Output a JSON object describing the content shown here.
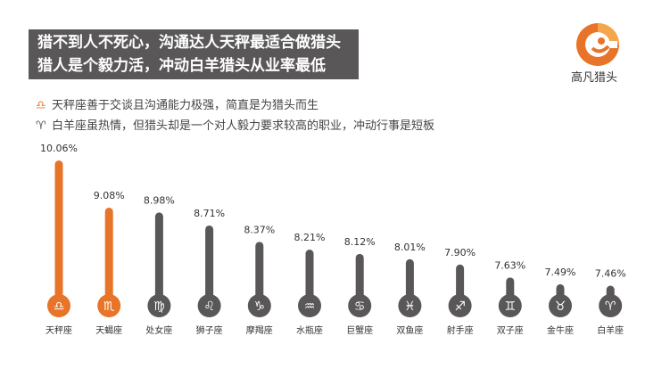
{
  "header": {
    "title_line1": "猎不到人不死心，沟通达人天秤最适合做猎头",
    "title_line2": "猎人是个毅力活，冲动白羊猎头从业率最低"
  },
  "logo": {
    "text": "高凡猎头",
    "icon": "gaofan-logo-icon",
    "colors": [
      "#e8742a",
      "#f3a64a"
    ]
  },
  "notes": [
    {
      "icon": "libra-symbol-icon",
      "glyph": "♎",
      "text": "天秤座善于交谈且沟通能力极强，简直是为猎头而生"
    },
    {
      "icon": "aries-symbol-icon",
      "glyph": "♈",
      "text": "白羊座虽热情，但猎头却是一个对人毅力要求较高的职业，冲动行事是短板"
    }
  ],
  "colors": {
    "highlight": "#e8742a",
    "bar": "#595757",
    "header_bg": "#595757"
  },
  "chart_data": {
    "type": "bar",
    "categories": [
      "天秤座",
      "天蝎座",
      "处女座",
      "狮子座",
      "摩羯座",
      "水瓶座",
      "巨蟹座",
      "双鱼座",
      "射手座",
      "双子座",
      "金牛座",
      "白羊座"
    ],
    "value_labels": [
      "10.06%",
      "9.08%",
      "8.98%",
      "8.71%",
      "8.37%",
      "8.21%",
      "8.12%",
      "8.01%",
      "7.90%",
      "7.63%",
      "7.49%",
      "7.46%"
    ],
    "values": [
      10.06,
      9.08,
      8.98,
      8.71,
      8.37,
      8.21,
      8.12,
      8.01,
      7.9,
      7.63,
      7.49,
      7.46
    ],
    "symbols": [
      "♎",
      "♏",
      "♍",
      "♌",
      "♑",
      "♒",
      "♋",
      "♓",
      "♐",
      "♊",
      "♉",
      "♈"
    ],
    "highlighted": [
      0,
      1
    ],
    "ylim": [
      7.1,
      10.06
    ],
    "grid": false
  }
}
